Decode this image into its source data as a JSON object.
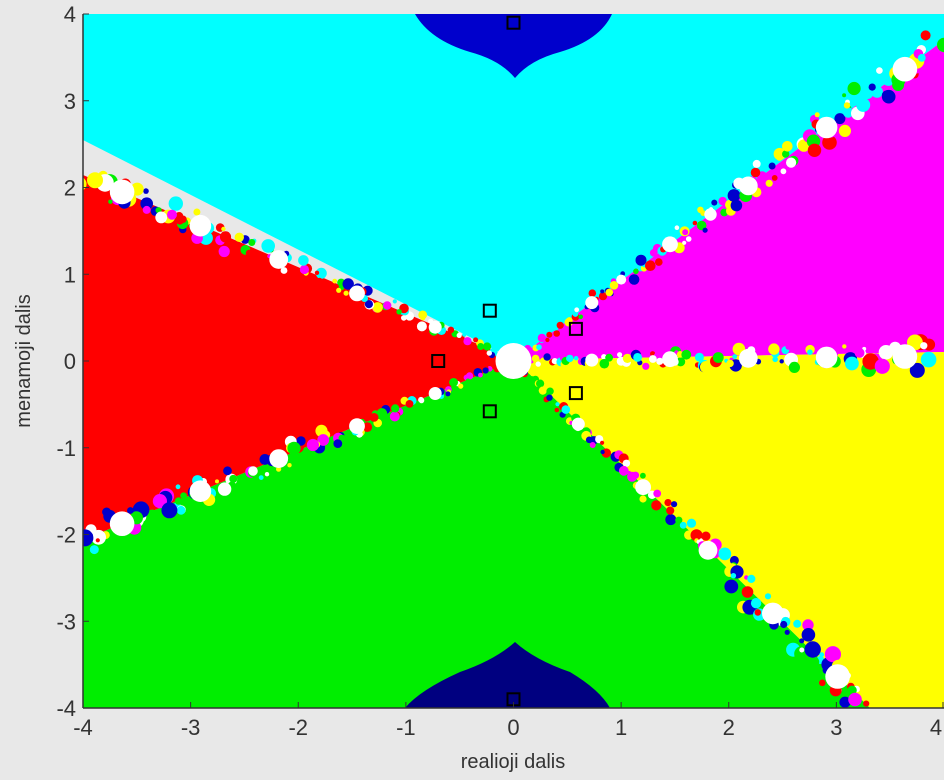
{
  "chart_data": {
    "type": "heatmap",
    "title": "",
    "xlabel": "realioji dalis",
    "ylabel": "menamoji dalis",
    "xlim": [
      -4,
      4
    ],
    "ylim": [
      -4,
      4
    ],
    "x_ticks": [
      -4,
      -3,
      -2,
      -1,
      0,
      1,
      2,
      3,
      4
    ],
    "y_ticks": [
      4,
      3,
      2,
      1,
      0,
      -1,
      -2,
      -3,
      -4
    ],
    "x_tick_labels": [
      "-4",
      "-3",
      "-2",
      "-1",
      "0",
      "1",
      "2",
      "3",
      "4"
    ],
    "y_tick_labels": [
      "4",
      "3",
      "2",
      "1",
      "0",
      "-1",
      "-2",
      "-3",
      "-4"
    ],
    "grid": false,
    "basins": [
      {
        "color": "#ff0000",
        "region": "left"
      },
      {
        "color": "#00ffff",
        "region": "upper-left"
      },
      {
        "color": "#ff00ff",
        "region": "upper-right"
      },
      {
        "color": "#ffff00",
        "region": "lower-right"
      },
      {
        "color": "#00ee00",
        "region": "lower-left"
      },
      {
        "color": "#0000cc",
        "region": "top-center"
      },
      {
        "color": "#000080",
        "region": "bottom-center"
      }
    ],
    "boundary_colors": [
      "#ffffff",
      "#ff0000",
      "#00ffff",
      "#ff00ff",
      "#ffff00",
      "#00ee00",
      "#0000cc"
    ],
    "roots": [
      {
        "x": -0.7,
        "y": 0.0
      },
      {
        "x": -0.22,
        "y": 0.58
      },
      {
        "x": -0.22,
        "y": -0.58
      },
      {
        "x": 0.58,
        "y": 0.37
      },
      {
        "x": 0.58,
        "y": -0.37
      },
      {
        "x": 0.0,
        "y": 3.9
      },
      {
        "x": 0.0,
        "y": -3.9
      }
    ]
  }
}
